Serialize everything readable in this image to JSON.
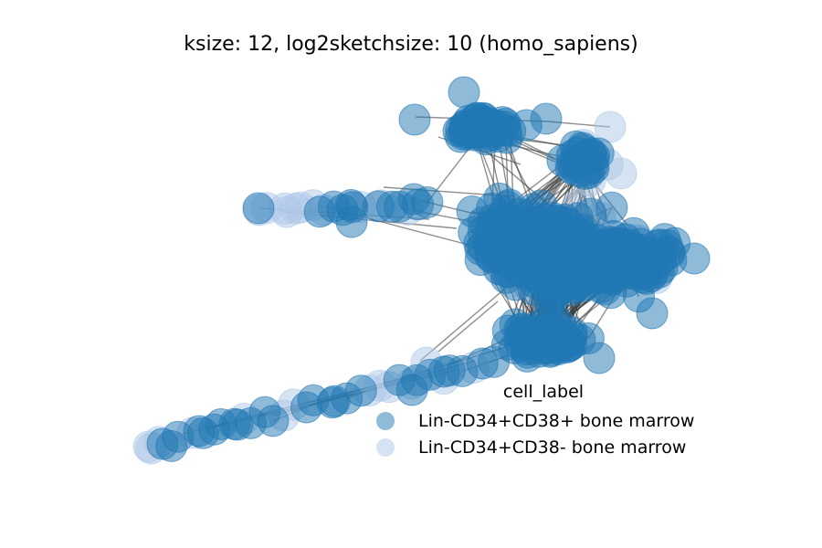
{
  "chart_data": {
    "type": "scatter",
    "subtype": "network-graph",
    "title": "ksize: 12, log2sketchsize: 10 (homo_sapiens)",
    "xlabel": "",
    "ylabel": "",
    "axes_visible": false,
    "grid": false,
    "legend": {
      "title": "cell_label",
      "placement": "lower-right",
      "entries": [
        {
          "label": "Lin-CD34+CD38+ bone marrow",
          "color": "#1f77b4",
          "alpha": 0.5
        },
        {
          "label": "Lin-CD34+CD38- bone marrow",
          "color": "#aec7e8",
          "alpha": 0.5
        }
      ]
    },
    "colors": {
      "node_dark": "#1f77b4",
      "node_light": "#aec7e8",
      "edge": "#333333"
    }
  }
}
